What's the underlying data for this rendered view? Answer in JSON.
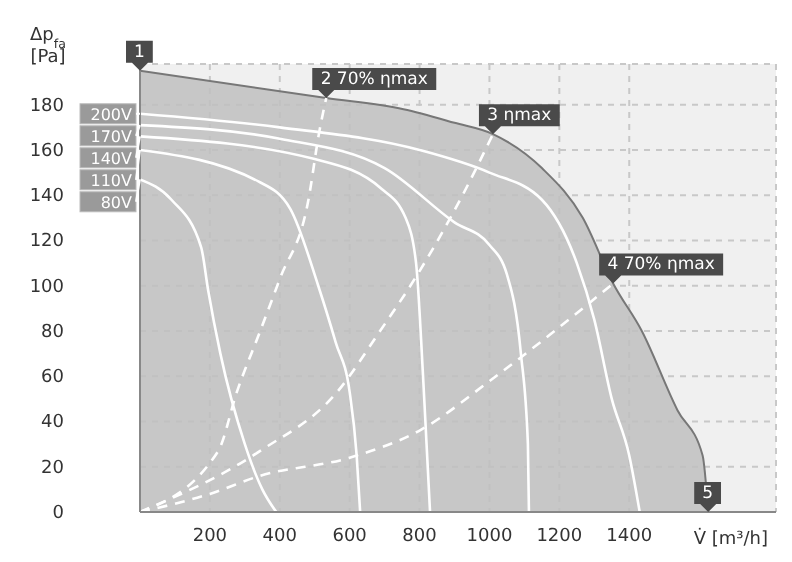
{
  "chart_data": {
    "type": "line",
    "xlabel": "V̇ [m³/h]",
    "ylabel": "Δp$_{fa}$ [Pa]",
    "xlim": [
      0,
      1820
    ],
    "ylim": [
      0,
      198
    ],
    "xticks": [
      200,
      400,
      600,
      800,
      1000,
      1200,
      1400
    ],
    "yticks": [
      0,
      20,
      40,
      60,
      80,
      100,
      120,
      140,
      160,
      180
    ],
    "grid": true,
    "marker": "none",
    "legend": "left",
    "series": [
      {
        "type": "area",
        "color": "#c0c0c0",
        "x": [
          0,
          533,
          754,
          900,
          1010,
          1150,
          1267,
          1354,
          1436,
          1538,
          1610,
          1626
        ],
        "values": [
          195,
          183,
          178,
          172,
          167,
          152,
          130,
          101,
          80,
          45,
          25,
          0
        ]
      },
      {
        "name": "200V",
        "color": "#ffffff",
        "x": [
          0,
          400,
          800,
          1000,
          1150,
          1250,
          1300,
          1350,
          1400,
          1430
        ],
        "values": [
          176,
          170,
          160,
          150,
          138,
          110,
          85,
          50,
          25,
          0
        ]
      },
      {
        "name": "170V",
        "color": "#ffffff",
        "x": [
          0,
          400,
          700,
          900,
          1000,
          1050,
          1090,
          1110,
          1113
        ],
        "values": [
          171,
          165,
          152,
          128,
          118,
          105,
          70,
          30,
          0
        ]
      },
      {
        "name": "140V",
        "color": "#ffffff",
        "x": [
          0,
          500,
          690,
          760,
          790,
          810,
          820,
          830
        ],
        "values": [
          166,
          156,
          143,
          130,
          110,
          60,
          30,
          0
        ]
      },
      {
        "name": "110V",
        "color": "#ffffff",
        "x": [
          0,
          340,
          430,
          510,
          560,
          600,
          620,
          630
        ],
        "values": [
          160,
          146,
          134,
          100,
          75,
          53,
          25,
          0
        ]
      },
      {
        "name": "80V",
        "color": "#ffffff",
        "x": [
          0,
          90,
          175,
          195,
          230,
          300,
          350,
          390
        ],
        "values": [
          147,
          138,
          117,
          98,
          70,
          30,
          10,
          0
        ]
      },
      {
        "color": "#ffffff",
        "line_style": "dashed",
        "x": [
          0,
          224,
          277,
          344,
          400,
          482,
          513,
          533
        ],
        "values": [
          0,
          27,
          53,
          80,
          103,
          138,
          168,
          183
        ]
      },
      {
        "color": "#ffffff",
        "line_style": "dashed",
        "x": [
          0,
          344,
          564,
          687,
          790,
          923,
          1010
        ],
        "values": [
          0,
          27,
          53,
          80,
          104,
          140,
          167
        ]
      },
      {
        "color": "#ffffff",
        "line_style": "dashed",
        "x": [
          0,
          200,
          344,
          600,
          800,
          1010,
          1267,
          1354
        ],
        "values": [
          0,
          8,
          16,
          24,
          36,
          59,
          90,
          101
        ]
      }
    ],
    "annotations": [
      {
        "text": "1",
        "x": 0,
        "y": 195
      },
      {
        "text": "2 70% ηmax",
        "x": 533,
        "y": 183
      },
      {
        "text": "3 ηmax",
        "x": 1010,
        "y": 167
      },
      {
        "text": "4 70% ηmax",
        "x": 1354,
        "y": 101
      },
      {
        "text": "5",
        "x": 1626,
        "y": 0
      }
    ]
  }
}
